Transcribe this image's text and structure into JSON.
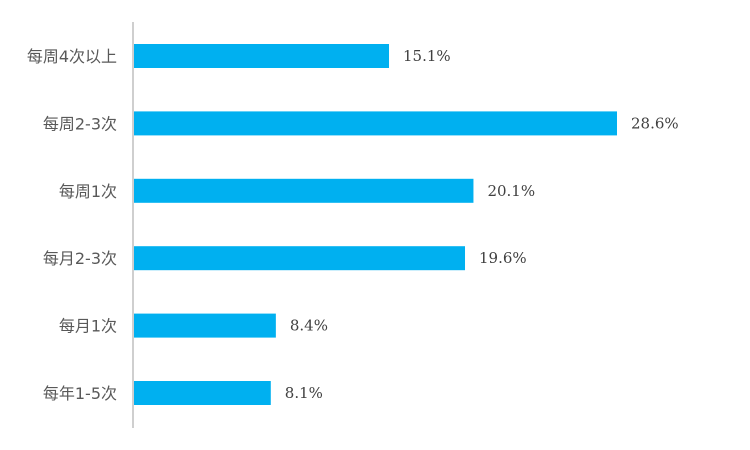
{
  "chart_data": {
    "type": "bar",
    "orientation": "horizontal",
    "categories": [
      "每周4次以上",
      "每周2-3次",
      "每周1次",
      "每月2-3次",
      "每月1次",
      "每年1-5次"
    ],
    "values": [
      15.1,
      28.6,
      20.1,
      19.6,
      8.4,
      8.1
    ],
    "value_labels": [
      "15.1%",
      "28.6%",
      "20.1%",
      "19.6%",
      "8.4%",
      "8.1%"
    ],
    "unit": "%",
    "xlim": [
      0,
      30
    ],
    "grid": false,
    "legend": "none",
    "bar_color": "#00B0F0",
    "axis_color": "#BFBFBF"
  }
}
